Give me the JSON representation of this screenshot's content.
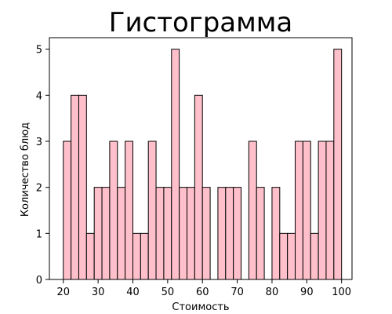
{
  "chart_data": {
    "type": "bar",
    "title": "Гистограмма",
    "xlabel": "Стоимость",
    "ylabel": "Количество блюд",
    "bar_fill": "#ffc0cb",
    "bar_edge": "#000000",
    "xlim": [
      16,
      103
    ],
    "ylim": [
      0,
      5.25
    ],
    "x_ticks": [
      20,
      30,
      40,
      50,
      60,
      70,
      80,
      90,
      100
    ],
    "y_ticks": [
      0,
      1,
      2,
      3,
      4,
      5
    ],
    "bin_start": 20,
    "bin_width": 2.2222,
    "values": [
      3,
      4,
      4,
      1,
      2,
      2,
      3,
      2,
      3,
      1,
      1,
      3,
      2,
      2,
      5,
      2,
      2,
      4,
      2,
      0,
      2,
      2,
      2,
      0,
      3,
      2,
      0,
      2,
      1,
      1,
      3,
      3,
      1,
      3,
      3,
      5
    ]
  }
}
